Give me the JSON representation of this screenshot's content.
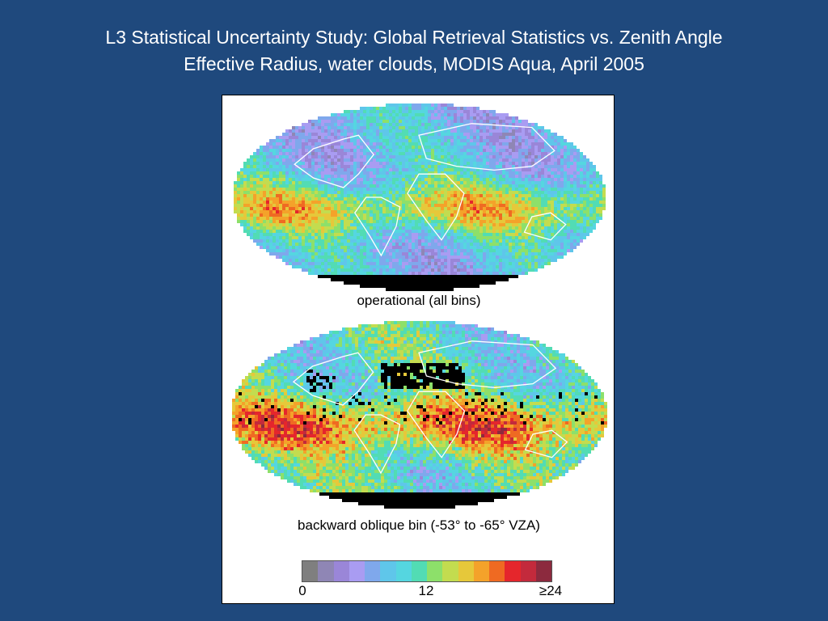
{
  "slide": {
    "title_line1": "L3 Statistical Uncertainty Study: Global Retrieval Statistics vs. Zenith Angle",
    "title_line2": "Effective Radius, water clouds, MODIS Aqua, April 2005"
  },
  "maps": [
    {
      "caption": "operational (all bins)",
      "field": "operational"
    },
    {
      "caption": "backward oblique bin (-53°    to -65°    VZA)",
      "field": "oblique"
    }
  ],
  "colorbar": {
    "colors": [
      "#7f7f7f",
      "#8f86b5",
      "#9a86d8",
      "#a99cf2",
      "#7fa8ec",
      "#5fc6ea",
      "#55d6e0",
      "#52dcb4",
      "#8de06a",
      "#c3dc4f",
      "#e6c83a",
      "#f4a22a",
      "#ef6a22",
      "#e5262c",
      "#c32a3c",
      "#8c2a3e"
    ],
    "tick_labels": [
      "0",
      "12",
      "≥24"
    ]
  },
  "no_data_color": "#000000",
  "coastline_color": "#ffffff"
}
